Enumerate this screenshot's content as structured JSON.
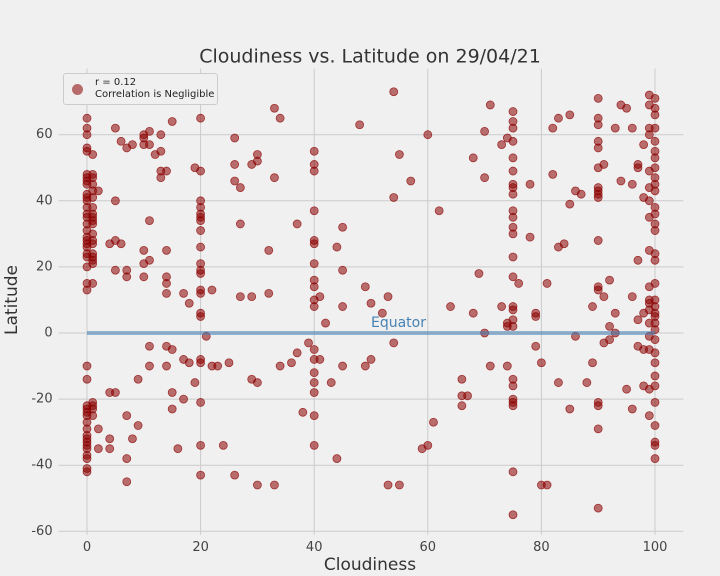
{
  "chart_data": {
    "type": "scatter",
    "title": "Cloudiness vs. Latitude on 29/04/21",
    "x_label": "Cloudiness",
    "y_label": "Latitude",
    "xlim": [
      -5,
      105
    ],
    "ylim": [
      -61,
      80
    ],
    "xticks": [
      0,
      20,
      40,
      60,
      80,
      100
    ],
    "yticks": [
      -60,
      -40,
      -20,
      0,
      20,
      40,
      60
    ],
    "grid": true,
    "legend": "upper left",
    "reference_line": {
      "y": 0,
      "xmin": 0,
      "xmax": 100,
      "color": "#4682b4"
    },
    "annotation": {
      "text": "Equator",
      "x": 50,
      "y": 3,
      "color": "#4682b4"
    },
    "series": [
      {
        "name": "r = 0.12\nCorrelation is Negligible",
        "color": "#8b0000",
        "x": [
          0,
          0,
          0,
          0,
          0,
          0,
          0,
          0,
          0,
          0,
          0,
          0,
          0,
          0,
          0,
          0,
          0,
          0,
          0,
          0,
          0,
          0,
          0,
          0,
          0,
          0,
          0,
          0,
          0,
          0,
          0,
          0,
          0,
          0,
          0,
          0,
          0,
          0,
          0,
          0,
          0,
          0,
          0,
          1,
          1,
          1,
          1,
          1,
          1,
          1,
          1,
          1,
          1,
          1,
          1,
          1,
          1,
          1,
          1,
          1,
          1,
          1,
          1,
          1,
          1,
          1,
          2,
          2,
          2,
          4,
          4,
          4,
          4,
          5,
          5,
          5,
          5,
          5,
          6,
          6,
          7,
          7,
          7,
          7,
          7,
          7,
          8,
          8,
          9,
          9,
          10,
          10,
          10,
          10,
          10,
          10,
          11,
          11,
          11,
          11,
          11,
          11,
          12,
          13,
          13,
          13,
          13,
          14,
          14,
          14,
          14,
          14,
          14,
          14,
          15,
          15,
          15,
          15,
          16,
          17,
          17,
          17,
          18,
          18,
          19,
          19,
          20,
          20,
          20,
          20,
          20,
          20,
          20,
          20,
          20,
          20,
          20,
          20,
          20,
          20,
          20,
          20,
          20,
          20,
          20,
          20,
          20,
          21,
          22,
          22,
          23,
          24,
          25,
          26,
          26,
          26,
          26,
          27,
          27,
          27,
          29,
          29,
          29,
          30,
          30,
          30,
          30,
          32,
          32,
          33,
          33,
          33,
          34,
          34,
          36,
          37,
          37,
          38,
          39,
          40,
          40,
          40,
          40,
          40,
          40,
          40,
          40,
          40,
          40,
          40,
          40,
          40,
          40,
          40,
          40,
          40,
          40,
          41,
          41,
          42,
          43,
          44,
          44,
          45,
          45,
          45,
          45,
          48,
          49,
          49,
          50,
          50,
          52,
          53,
          53,
          54,
          54,
          54,
          55,
          55,
          57,
          59,
          60,
          60,
          61,
          62,
          64,
          66,
          66,
          66,
          67,
          68,
          68,
          69,
          70,
          70,
          70,
          71,
          71,
          73,
          73,
          74,
          74,
          74,
          74,
          75,
          75,
          75,
          75,
          75,
          75,
          75,
          75,
          75,
          75,
          75,
          75,
          75,
          75,
          75,
          75,
          75,
          75,
          75,
          75,
          75,
          75,
          75,
          75,
          75,
          75,
          76,
          78,
          78,
          79,
          79,
          79,
          80,
          80,
          81,
          81,
          82,
          82,
          83,
          83,
          83,
          84,
          85,
          85,
          85,
          86,
          86,
          87,
          88,
          89,
          89,
          90,
          90,
          90,
          90,
          90,
          90,
          90,
          90,
          90,
          90,
          90,
          90,
          90,
          90,
          90,
          90,
          90,
          91,
          91,
          91,
          92,
          92,
          92,
          93,
          93,
          93,
          94,
          94,
          95,
          95,
          96,
          96,
          96,
          96,
          97,
          97,
          97,
          97,
          97,
          98,
          98,
          98,
          98,
          98,
          99,
          99,
          99,
          99,
          99,
          99,
          99,
          99,
          99,
          99,
          99,
          99,
          99,
          99,
          99,
          99,
          99,
          99,
          100,
          100,
          100,
          100,
          100,
          100,
          100,
          100,
          100,
          100,
          100,
          100,
          100,
          100,
          100,
          100,
          100,
          100,
          100,
          100,
          100,
          100,
          100,
          100,
          100,
          100,
          100,
          100,
          100,
          100,
          100,
          100,
          100,
          100
        ],
        "values": [
          65,
          62,
          60,
          56,
          55,
          48,
          47,
          46,
          45,
          42,
          41,
          40,
          38,
          36,
          35,
          33,
          31,
          29,
          28,
          27,
          26,
          24,
          23,
          20,
          15,
          13,
          -10,
          -14,
          -22,
          -23,
          -24,
          -25,
          -27,
          -29,
          -31,
          -32,
          -33,
          -34,
          -35,
          -37,
          -38,
          -41,
          -42,
          54,
          48,
          47,
          45,
          43,
          41,
          38,
          36,
          35,
          34,
          33,
          30,
          28,
          27,
          24,
          23,
          22,
          21,
          15,
          -21,
          -22,
          -23,
          -25,
          43,
          -29,
          -35,
          27,
          -18,
          -32,
          -35,
          62,
          40,
          28,
          19,
          -18,
          58,
          27,
          56,
          19,
          17,
          -25,
          -38,
          -45,
          57,
          -32,
          -28,
          -14,
          60,
          59,
          57,
          25,
          17,
          21,
          61,
          57,
          34,
          22,
          -4,
          -10,
          54,
          60,
          55,
          49,
          47,
          49,
          25,
          17,
          15,
          12,
          -4,
          -10,
          64,
          -18,
          -23,
          -5,
          -35,
          12,
          -8,
          -20,
          9,
          -9,
          50,
          -15,
          65,
          49,
          40,
          38,
          36,
          35,
          34,
          31,
          26,
          21,
          19,
          18,
          13,
          12,
          6,
          5,
          -8,
          -9,
          -21,
          -34,
          -43,
          -1,
          13,
          -10,
          -10,
          -34,
          -9,
          59,
          51,
          46,
          -43,
          44,
          33,
          11,
          51,
          11,
          -14,
          54,
          52,
          -15,
          -46,
          25,
          12,
          68,
          47,
          -46,
          65,
          -10,
          -9,
          33,
          -6,
          -24,
          -3,
          55,
          51,
          49,
          37,
          28,
          27,
          21,
          16,
          14,
          10,
          8,
          -5,
          -8,
          -12,
          -15,
          -18,
          -25,
          -34,
          11,
          -8,
          3,
          -15,
          26,
          -38,
          32,
          19,
          8,
          -10,
          63,
          14,
          -10,
          9,
          -8,
          6,
          11,
          -46,
          73,
          41,
          -3,
          54,
          -46,
          46,
          -35,
          60,
          -34,
          -27,
          37,
          8,
          -14,
          -19,
          -22,
          -19,
          53,
          6,
          18,
          61,
          47,
          0,
          69,
          -10,
          57,
          8,
          59,
          3,
          2,
          -10,
          67,
          64,
          62,
          58,
          53,
          49,
          45,
          44,
          42,
          37,
          35,
          32,
          30,
          23,
          17,
          8,
          7,
          4,
          2,
          -14,
          -16,
          -20,
          -21,
          -22,
          -42,
          -55,
          15,
          45,
          29,
          6,
          5,
          -4,
          -9,
          -46,
          15,
          -46,
          62,
          48,
          65,
          26,
          -15,
          27,
          66,
          39,
          -23,
          43,
          -1,
          42,
          -15,
          8,
          -9,
          71,
          65,
          63,
          58,
          56,
          50,
          44,
          43,
          42,
          41,
          28,
          14,
          13,
          -21,
          -22,
          -29,
          -53,
          51,
          11,
          -3,
          16,
          2,
          -2,
          62,
          6,
          0,
          69,
          46,
          68,
          -17,
          62,
          45,
          11,
          -23,
          51,
          50,
          22,
          4,
          -4,
          57,
          41,
          6,
          -5,
          -16,
          72,
          69,
          62,
          60,
          49,
          44,
          40,
          35,
          25,
          14,
          10,
          9,
          7,
          3,
          -1,
          -5,
          -17,
          -25,
          71,
          68,
          66,
          62,
          58,
          55,
          53,
          50,
          47,
          45,
          43,
          38,
          36,
          33,
          31,
          24,
          22,
          15,
          10,
          8,
          6,
          5,
          3,
          1,
          -2,
          -6,
          -9,
          -13,
          -16,
          -21,
          -28,
          -33,
          -34,
          -38
        ]
      }
    ]
  }
}
